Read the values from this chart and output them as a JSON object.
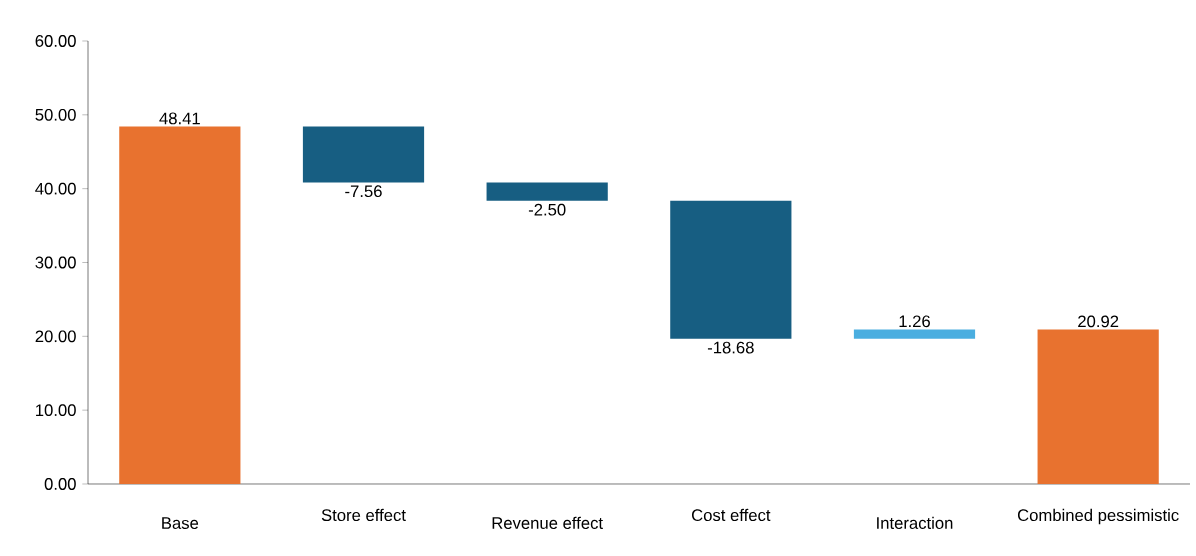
{
  "chart_data": {
    "type": "bar",
    "categories": [
      "Base",
      "Store effect",
      "Revenue effect",
      "Cost effect",
      "Interaction",
      "Combined pessimistic"
    ],
    "values": [
      48.41,
      -7.56,
      -2.5,
      -18.68,
      1.26,
      20.92
    ],
    "base": [
      0,
      48.41,
      40.85,
      38.35,
      19.67,
      0
    ],
    "colors": [
      "#e8722f",
      "#175e82",
      "#175e82",
      "#175e82",
      "#4aaee0",
      "#e8722f"
    ],
    "value_labels": [
      "48.41",
      "-7.56",
      "-2.50",
      "-18.68",
      "1.26",
      "20.92"
    ],
    "ylim": [
      0,
      60
    ],
    "yticks": [
      {
        "value": 0,
        "label": "0.00"
      },
      {
        "value": 10,
        "label": "10.00"
      },
      {
        "value": 20,
        "label": "20.00"
      },
      {
        "value": 30,
        "label": "30.00"
      },
      {
        "value": 40,
        "label": "40.00"
      },
      {
        "value": 50,
        "label": "50.00"
      },
      {
        "value": 60,
        "label": "60.00"
      }
    ],
    "grid": false
  }
}
